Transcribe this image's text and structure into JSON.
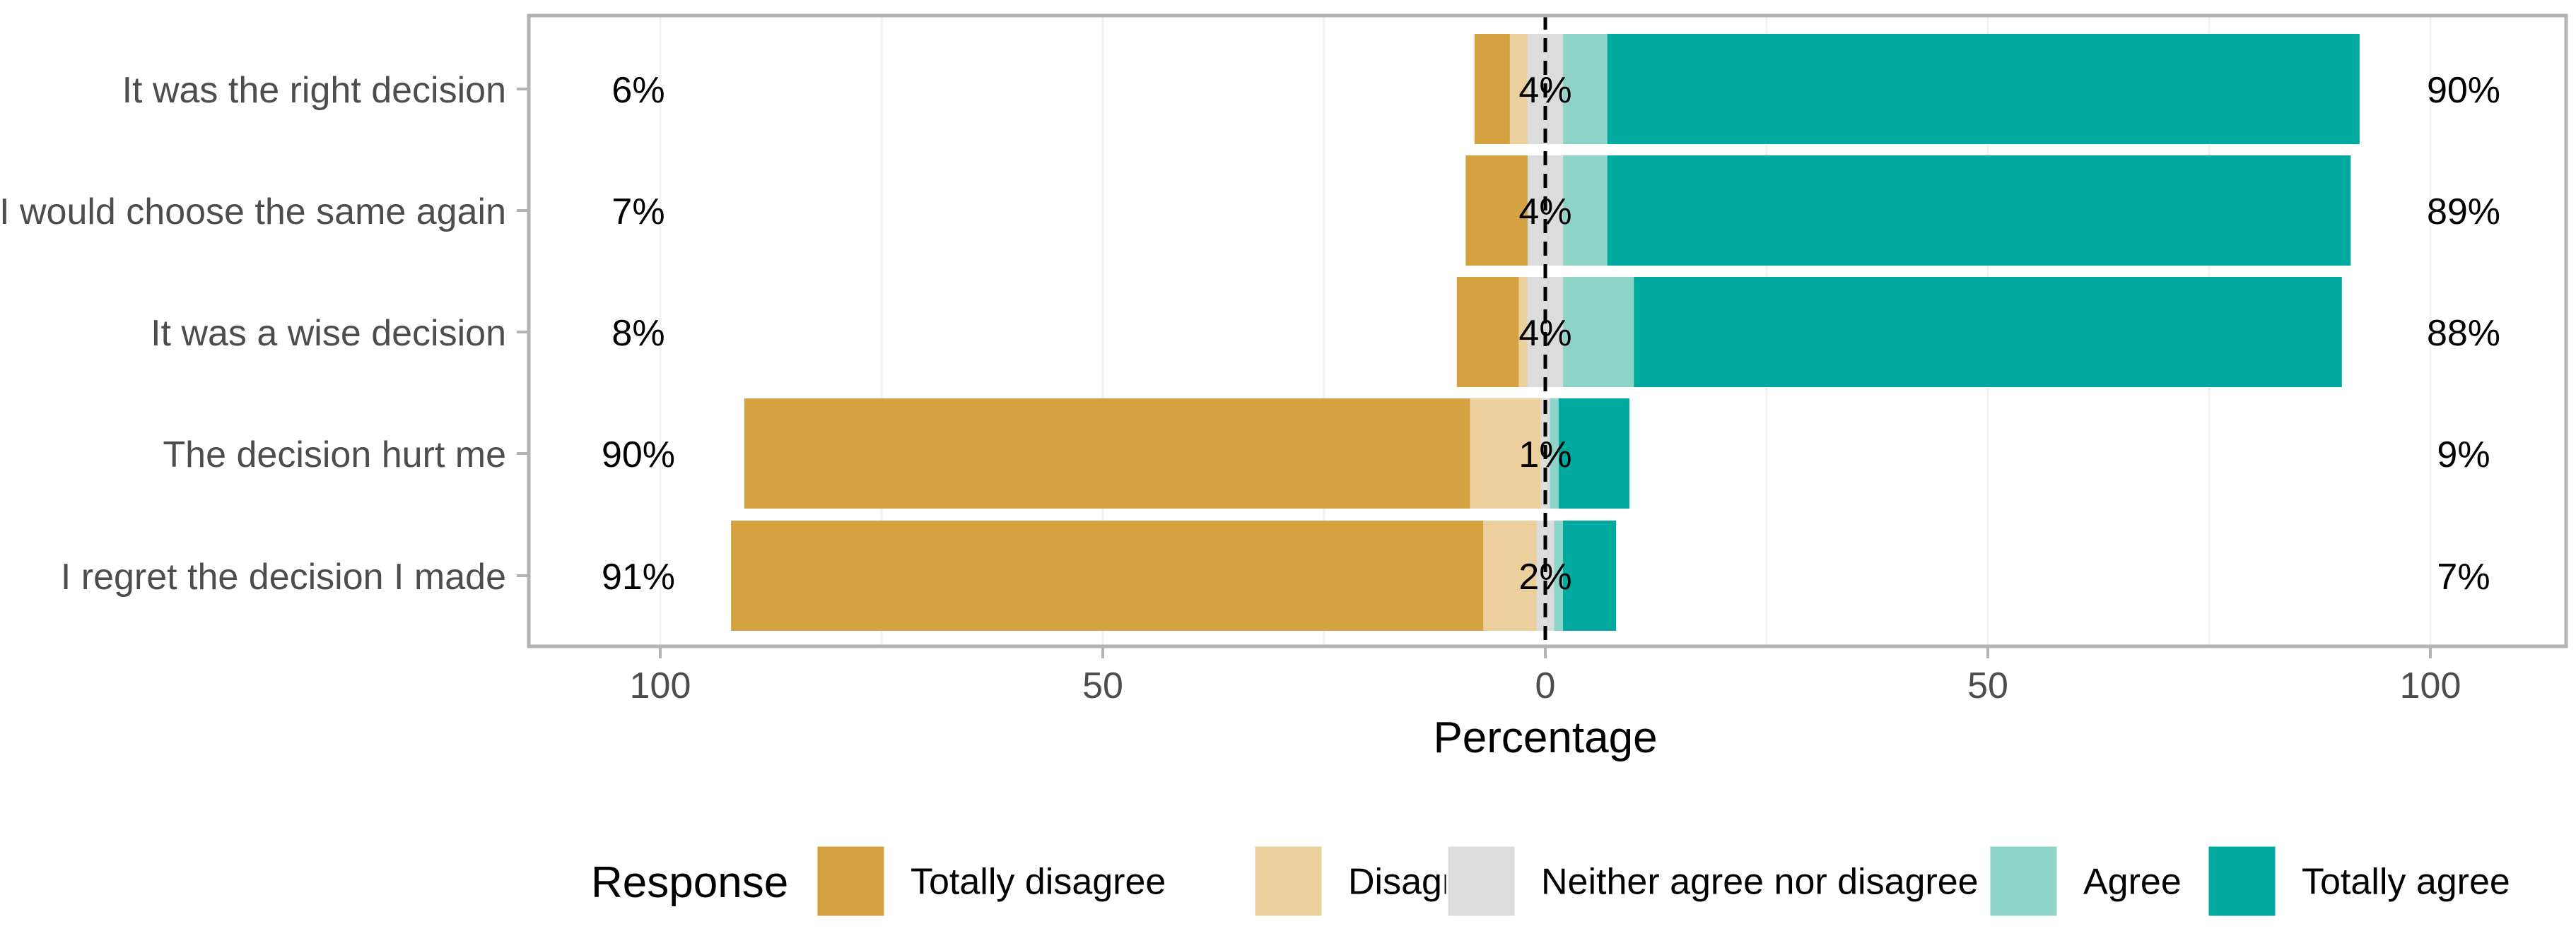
{
  "chart_data": {
    "type": "bar",
    "subtype": "diverging-stacked-likert",
    "title": "",
    "xlabel": "Percentage",
    "ylabel": "",
    "xlim": [
      -112,
      112
    ],
    "x_ticks": [
      -100,
      -50,
      0,
      50,
      100
    ],
    "x_tick_labels": [
      "100",
      "50",
      "0",
      "50",
      "100"
    ],
    "grid": true,
    "legend_position": "bottom",
    "legend_title": "Response",
    "levels": [
      "Totally disagree",
      "Disagree",
      "Neither agree nor disagree",
      "Agree",
      "Totally agree"
    ],
    "colors": {
      "Totally disagree": "#D4A240",
      "Disagree": "#EBD09E",
      "Neither agree nor disagree": "#DCDCDC",
      "Agree": "#8FD4C9",
      "Totally agree": "#00A99D"
    },
    "categories": [
      "It was the right decision",
      "I would choose the same again",
      "It was a wise decision",
      "The decision hurt me",
      "I regret the decision I made"
    ],
    "series": [
      {
        "name": "Totally disagree",
        "values": [
          4,
          7,
          7,
          82,
          85
        ]
      },
      {
        "name": "Disagree",
        "values": [
          2,
          0,
          1,
          8,
          6
        ]
      },
      {
        "name": "Neither agree nor disagree",
        "values": [
          4,
          4,
          4,
          1,
          2
        ]
      },
      {
        "name": "Agree",
        "values": [
          5,
          5,
          8,
          1,
          1
        ]
      },
      {
        "name": "Totally agree",
        "values": [
          85,
          84,
          80,
          8,
          6
        ]
      }
    ],
    "left_labels": [
      "6%",
      "7%",
      "8%",
      "90%",
      "91%"
    ],
    "center_labels": [
      "4%",
      "4%",
      "4%",
      "1%",
      "2%"
    ],
    "right_labels": [
      "90%",
      "89%",
      "88%",
      "9%",
      "7%"
    ]
  }
}
